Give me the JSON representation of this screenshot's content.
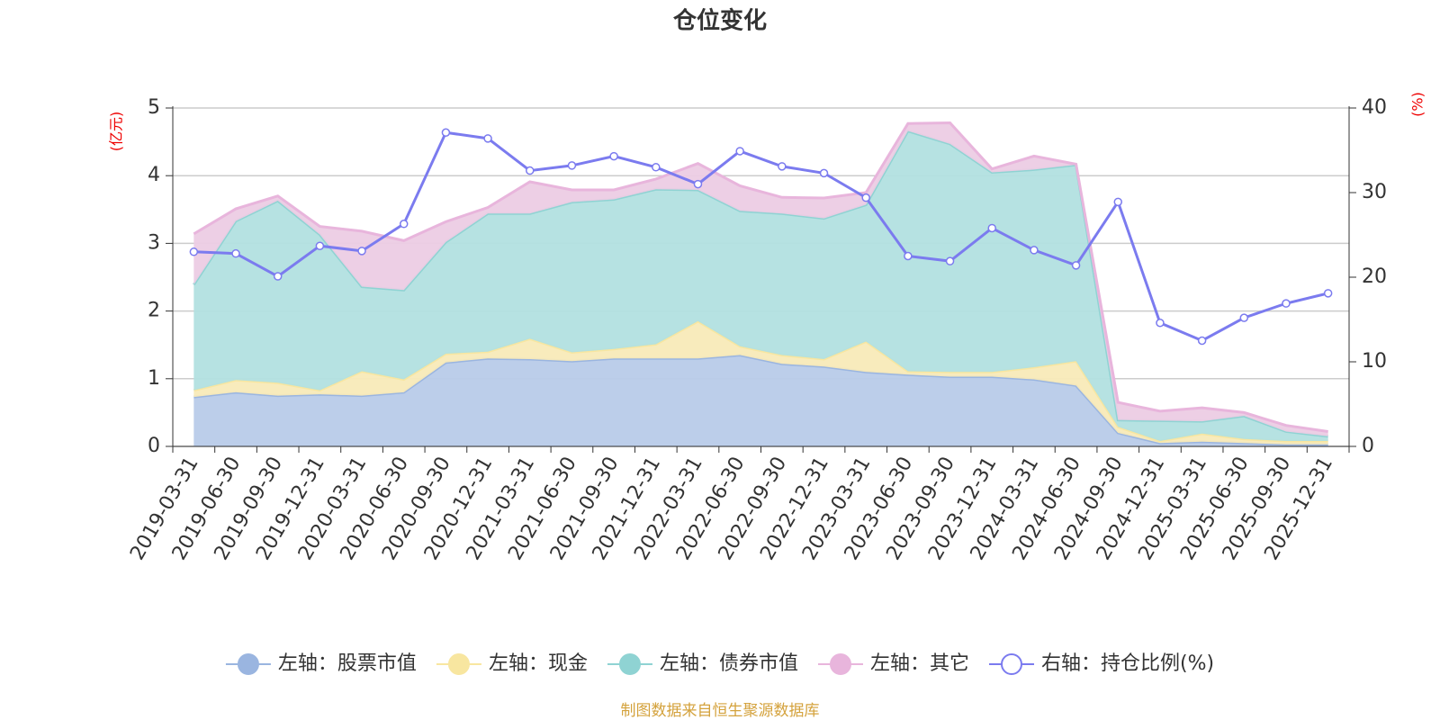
{
  "chart_data": {
    "type": "stacked-area-line",
    "title": "仓位变化",
    "y_label": "(亿元)",
    "y2_label": "(%)",
    "source": "制图数据来自恒生聚源数据库",
    "categories": [
      "2019-03-31",
      "2019-06-30",
      "2019-09-30",
      "2019-12-31",
      "2020-03-31",
      "2020-06-30",
      "2020-09-30",
      "2020-12-31",
      "2021-03-31",
      "2021-06-30",
      "2021-09-30",
      "2021-12-31",
      "2022-03-31",
      "2022-06-30",
      "2022-09-30",
      "2022-12-31",
      "2023-03-31",
      "2023-06-30",
      "2023-09-30",
      "2023-12-31",
      "2024-03-31",
      "2024-06-30",
      "2024-09-30",
      "2024-12-31",
      "2025-03-31",
      "2025-06-30",
      "2025-09-30",
      "2025-12-31"
    ],
    "series": [
      {
        "name": "左轴：股票市值",
        "color": "#9ab5e0",
        "fill": "#b8cbe9",
        "values": [
          0.73,
          0.8,
          0.75,
          0.77,
          0.75,
          0.8,
          1.24,
          1.3,
          1.29,
          1.26,
          1.3,
          1.3,
          1.3,
          1.35,
          1.22,
          1.18,
          1.1,
          1.06,
          1.03,
          1.03,
          0.99,
          0.9,
          0.2,
          0.05,
          0.07,
          0.05,
          0.03,
          0.03
        ]
      },
      {
        "name": "左轴：现金",
        "color": "#f8e6a0",
        "fill": "#f8eab8",
        "values": [
          0.1,
          0.18,
          0.19,
          0.06,
          0.36,
          0.19,
          0.13,
          0.1,
          0.3,
          0.13,
          0.14,
          0.21,
          0.55,
          0.13,
          0.13,
          0.11,
          0.45,
          0.05,
          0.07,
          0.07,
          0.18,
          0.36,
          0.09,
          0.03,
          0.12,
          0.06,
          0.05,
          0.05
        ]
      },
      {
        "name": "左轴：债券市值",
        "color": "#8fd3d3",
        "fill": "#b2e0e0",
        "values": [
          1.56,
          2.35,
          2.69,
          2.3,
          1.25,
          1.32,
          1.65,
          2.04,
          1.85,
          2.22,
          2.21,
          2.29,
          1.94,
          2.0,
          2.09,
          2.08,
          2.02,
          3.55,
          3.37,
          2.95,
          2.92,
          2.9,
          0.1,
          0.3,
          0.18,
          0.34,
          0.14,
          0.07
        ]
      },
      {
        "name": "左轴：其它",
        "color": "#e8b5dc",
        "fill": "#ecccE4",
        "values": [
          0.75,
          0.18,
          0.07,
          0.12,
          0.82,
          0.73,
          0.3,
          0.09,
          0.47,
          0.18,
          0.14,
          0.15,
          0.39,
          0.37,
          0.24,
          0.3,
          0.18,
          0.11,
          0.31,
          0.05,
          0.2,
          0.01,
          0.26,
          0.14,
          0.2,
          0.05,
          0.09,
          0.07
        ]
      },
      {
        "name": "右轴：持仓比例(%)",
        "color": "#7b7bef",
        "axis": "y2",
        "values": [
          23.0,
          22.8,
          20.1,
          23.7,
          23.1,
          26.3,
          37.1,
          36.4,
          32.6,
          33.2,
          34.3,
          33.0,
          31.0,
          34.9,
          33.1,
          32.3,
          29.4,
          22.5,
          21.9,
          25.8,
          23.2,
          21.4,
          28.9,
          14.6,
          12.5,
          15.2,
          16.9,
          18.1
        ]
      }
    ],
    "ylim": [
      0,
      5
    ],
    "yticks": [
      0,
      1,
      2,
      3,
      4,
      5
    ],
    "y2lim": [
      0,
      40
    ],
    "y2ticks": [
      0,
      10,
      20,
      30,
      40
    ],
    "grid": true
  }
}
